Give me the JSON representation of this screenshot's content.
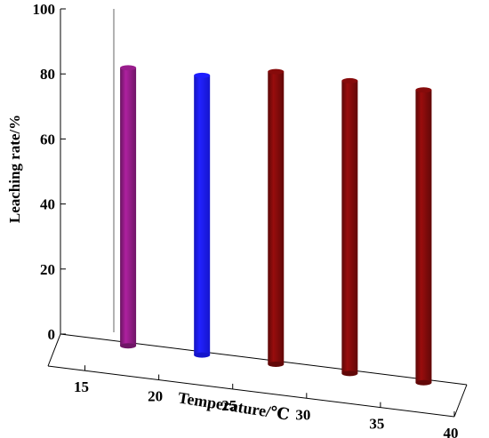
{
  "chart_data": {
    "type": "bar",
    "style": "3d-cylinder",
    "categories": [
      "17.5",
      "22.5",
      "27.5",
      "32.5",
      "37.5"
    ],
    "values": [
      85.5,
      86,
      90,
      90,
      90
    ],
    "colors": [
      "#8b1a7f",
      "#1a1aff",
      "#7a0a0a",
      "#7a0a0a",
      "#7a0a0a"
    ],
    "x_ticks": [
      "15",
      "20",
      "25",
      "30",
      "35",
      "40"
    ],
    "y_ticks": [
      "0",
      "20",
      "40",
      "60",
      "80",
      "100"
    ],
    "xlabel": "Temperature/℃",
    "ylabel": "Leaching rate/%",
    "xlim": [
      12.5,
      40
    ],
    "ylim": [
      0,
      100
    ],
    "grid": false,
    "legend": "none"
  }
}
